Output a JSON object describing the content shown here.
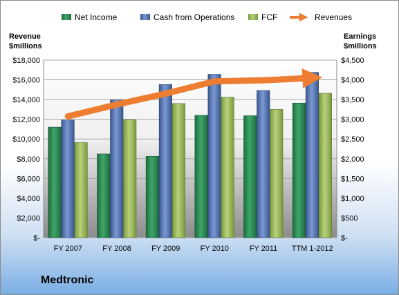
{
  "chart_data": {
    "type": "bar",
    "categories": [
      "FY 2007",
      "FY 2008",
      "FY 2009",
      "FY 2010",
      "FY 2011",
      "TTM 1-2012"
    ],
    "series": [
      {
        "name": "Net Income",
        "axis": "right",
        "color": "#2e8b57",
        "values": [
          2800,
          2120,
          2060,
          3100,
          3090,
          3410
        ]
      },
      {
        "name": "Cash from Operations",
        "axis": "right",
        "color": "#4f6fae",
        "values": [
          2980,
          3490,
          3880,
          4140,
          3730,
          4190
        ]
      },
      {
        "name": "FCF",
        "axis": "right",
        "color": "#9bbb59",
        "values": [
          2410,
          2990,
          3400,
          3560,
          3250,
          3660
        ]
      },
      {
        "name": "Revenues",
        "axis": "left",
        "type": "line",
        "color": "#ed7d31",
        "values": [
          12300,
          13500,
          14600,
          15850,
          15950,
          16200
        ]
      }
    ],
    "left_axis": {
      "title_lines": [
        "Revenue",
        "$millions"
      ],
      "ylim": [
        0,
        18000
      ],
      "ticks": [
        "$18,000",
        "$16,000",
        "$14,000",
        "$12,000",
        "$10,000",
        "$8,000",
        "$6,000",
        "$4,000",
        "$2,000",
        "$-"
      ]
    },
    "right_axis": {
      "title_lines": [
        "Earnings",
        "$millions"
      ],
      "ylim": [
        0,
        4500
      ],
      "ticks": [
        "$4,500",
        "$4,000",
        "$3,500",
        "$3,000",
        "$2,500",
        "$2,000",
        "$1,500",
        "$1,000",
        "$500",
        "$-"
      ]
    },
    "legend": {
      "position": "top"
    },
    "grid": true
  },
  "company": "Medtronic"
}
